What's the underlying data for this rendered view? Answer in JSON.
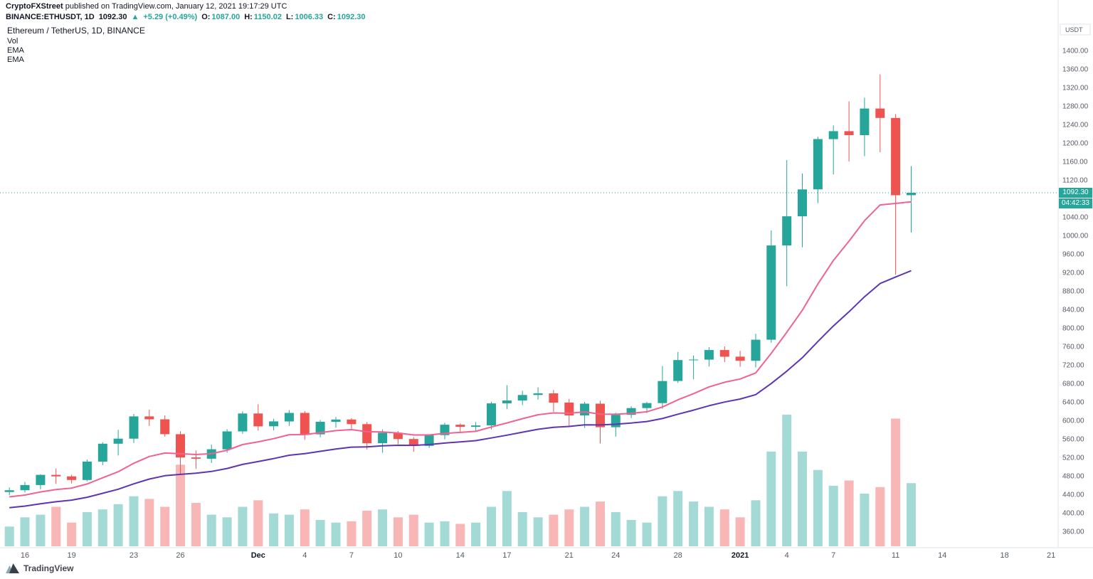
{
  "header": {
    "publisher": "CryptoFXStreet",
    "published_text": " published on TradingView.com, January 12, 2021 19:17:29 UTC",
    "symbol": "BINANCE:ETHUSDT, 1D",
    "last_price": "1092.30",
    "change_arrow": "▲",
    "change_text": "+5.29 (+0.49%)",
    "ohlc": [
      {
        "label": "O:",
        "value": "1087.00"
      },
      {
        "label": "H:",
        "value": "1150.02"
      },
      {
        "label": "L:",
        "value": "1006.33"
      },
      {
        "label": "C:",
        "value": "1092.30"
      }
    ]
  },
  "legend": {
    "title": "Ethereum / TetherUS, 1D, BINANCE",
    "indicators": [
      "Vol",
      "EMA",
      "EMA"
    ]
  },
  "price_axis": {
    "unit": "USDT",
    "min": 360,
    "max": 1400,
    "step": 40,
    "current_price_label": "1092.30",
    "countdown": "04:42:33"
  },
  "time_axis": {
    "labels": [
      {
        "text": "16",
        "index": 1,
        "strong": false
      },
      {
        "text": "19",
        "index": 4,
        "strong": false
      },
      {
        "text": "23",
        "index": 8,
        "strong": false
      },
      {
        "text": "26",
        "index": 11,
        "strong": false
      },
      {
        "text": "Dec",
        "index": 16,
        "strong": true
      },
      {
        "text": "4",
        "index": 19,
        "strong": false
      },
      {
        "text": "7",
        "index": 22,
        "strong": false
      },
      {
        "text": "10",
        "index": 25,
        "strong": false
      },
      {
        "text": "14",
        "index": 29,
        "strong": false
      },
      {
        "text": "17",
        "index": 32,
        "strong": false
      },
      {
        "text": "21",
        "index": 36,
        "strong": false
      },
      {
        "text": "24",
        "index": 39,
        "strong": false
      },
      {
        "text": "28",
        "index": 43,
        "strong": false
      },
      {
        "text": "2021",
        "index": 47,
        "strong": true
      },
      {
        "text": "4",
        "index": 50,
        "strong": false
      },
      {
        "text": "7",
        "index": 53,
        "strong": false
      },
      {
        "text": "11",
        "index": 57,
        "strong": false
      },
      {
        "text": "14",
        "index": 60,
        "strong": false
      },
      {
        "text": "18",
        "index": 64,
        "strong": false
      },
      {
        "text": "21",
        "index": 67,
        "strong": false
      }
    ]
  },
  "footer": {
    "logo_text": "TradingView"
  },
  "colors": {
    "up": "#26a69a",
    "down": "#ef5350",
    "vol_up": "rgba(38,166,154,0.42)",
    "vol_down": "rgba(239,83,80,0.42)",
    "ema_fast": "#f06292",
    "ema_slow": "#5e35b1",
    "accent": "#26a69a",
    "axis_text": "#555a64",
    "axis_line": "#e0e3eb"
  },
  "chart_data": {
    "type": "candlestick",
    "title": "Ethereum / TetherUS, 1D, BINANCE",
    "symbol": "ETHUSDT",
    "exchange": "BINANCE",
    "interval": "1D",
    "quote_unit": "USDT",
    "ylim": [
      340,
      1460
    ],
    "current_price": 1092.3,
    "countdown_to_close": "04:42:33",
    "ema_periods": [
      12,
      26
    ],
    "ema_seeds": [
      432,
      408
    ],
    "volume_unit": "relative",
    "ohlcv_columns": [
      "date",
      "open",
      "high",
      "low",
      "close",
      "volume"
    ],
    "ohlcv": [
      [
        "2020-11-15",
        445.0,
        455.0,
        438.0,
        448.9,
        15
      ],
      [
        "2020-11-16",
        448.9,
        466.9,
        444.0,
        460.1,
        22
      ],
      [
        "2020-11-17",
        460.1,
        483.6,
        451.0,
        482.1,
        24
      ],
      [
        "2020-11-18",
        482.1,
        495.9,
        462.5,
        478.9,
        30
      ],
      [
        "2020-11-19",
        478.9,
        482.5,
        463.5,
        471.1,
        18
      ],
      [
        "2020-11-20",
        471.1,
        515.4,
        468.3,
        510.9,
        26
      ],
      [
        "2020-11-21",
        510.9,
        552.8,
        503.0,
        549.6,
        28
      ],
      [
        "2020-11-22",
        549.6,
        579.5,
        524.0,
        560.5,
        32
      ],
      [
        "2020-11-23",
        560.5,
        613.8,
        551.2,
        608.6,
        38
      ],
      [
        "2020-11-24",
        608.6,
        623.5,
        588.0,
        602.3,
        36
      ],
      [
        "2020-11-25",
        602.3,
        611.0,
        565.0,
        570.2,
        30
      ],
      [
        "2020-11-26",
        570.2,
        576.5,
        481.5,
        519.8,
        62
      ],
      [
        "2020-11-27",
        519.8,
        535.0,
        495.0,
        517.1,
        33
      ],
      [
        "2020-11-28",
        517.1,
        547.5,
        508.0,
        537.5,
        24
      ],
      [
        "2020-11-29",
        537.5,
        580.9,
        530.1,
        576.2,
        22
      ],
      [
        "2020-11-30",
        576.2,
        619.5,
        571.0,
        615.0,
        30
      ],
      [
        "2020-12-01",
        615.0,
        635.0,
        578.0,
        587.2,
        35
      ],
      [
        "2020-12-02",
        587.2,
        603.5,
        578.5,
        597.8,
        25
      ],
      [
        "2020-12-03",
        597.8,
        622.5,
        588.0,
        616.2,
        24
      ],
      [
        "2020-12-04",
        616.2,
        620.0,
        558.0,
        569.8,
        28
      ],
      [
        "2020-12-05",
        569.8,
        601.0,
        563.5,
        596.9,
        20
      ],
      [
        "2020-12-06",
        596.9,
        607.5,
        584.5,
        601.9,
        18
      ],
      [
        "2020-12-07",
        601.9,
        605.0,
        582.0,
        591.9,
        19
      ],
      [
        "2020-12-08",
        591.9,
        596.5,
        537.0,
        550.6,
        27
      ],
      [
        "2020-12-09",
        550.6,
        580.5,
        530.0,
        573.2,
        28
      ],
      [
        "2020-12-10",
        573.2,
        577.0,
        548.5,
        559.7,
        22
      ],
      [
        "2020-12-11",
        559.7,
        563.5,
        532.0,
        544.9,
        24
      ],
      [
        "2020-12-12",
        544.9,
        570.0,
        540.5,
        568.2,
        18
      ],
      [
        "2020-12-13",
        568.2,
        595.0,
        559.0,
        590.6,
        19
      ],
      [
        "2020-12-14",
        590.6,
        593.5,
        573.5,
        586.0,
        17
      ],
      [
        "2020-12-15",
        586.0,
        596.5,
        577.0,
        589.1,
        18
      ],
      [
        "2020-12-16",
        589.1,
        640.5,
        580.5,
        636.7,
        30
      ],
      [
        "2020-12-17",
        636.7,
        676.2,
        624.5,
        643.0,
        42
      ],
      [
        "2020-12-18",
        643.0,
        664.0,
        633.0,
        655.0,
        26
      ],
      [
        "2020-12-19",
        655.0,
        671.5,
        645.0,
        658.5,
        22
      ],
      [
        "2020-12-20",
        658.5,
        665.5,
        618.5,
        638.4,
        24
      ],
      [
        "2020-12-21",
        638.4,
        646.5,
        588.0,
        610.5,
        28
      ],
      [
        "2020-12-22",
        610.5,
        640.0,
        583.5,
        636.1,
        30
      ],
      [
        "2020-12-23",
        636.1,
        642.5,
        550.0,
        585.2,
        34
      ],
      [
        "2020-12-24",
        585.2,
        616.5,
        565.0,
        612.0,
        26
      ],
      [
        "2020-12-25",
        612.0,
        630.5,
        605.0,
        626.6,
        20
      ],
      [
        "2020-12-26",
        626.6,
        640.0,
        615.5,
        637.4,
        18
      ],
      [
        "2020-12-27",
        637.4,
        717.5,
        625.0,
        685.1,
        38
      ],
      [
        "2020-12-28",
        685.1,
        748.0,
        681.0,
        730.4,
        42
      ],
      [
        "2020-12-29",
        730.4,
        740.5,
        689.0,
        731.5,
        34
      ],
      [
        "2020-12-30",
        731.5,
        758.5,
        716.5,
        752.2,
        30
      ],
      [
        "2020-12-31",
        752.2,
        760.0,
        726.0,
        737.8,
        28
      ],
      [
        "2021-01-01",
        737.8,
        750.5,
        716.0,
        728.9,
        22
      ],
      [
        "2021-01-02",
        728.9,
        787.5,
        714.5,
        774.5,
        35
      ],
      [
        "2021-01-03",
        774.5,
        1011.0,
        768.0,
        978.3,
        72
      ],
      [
        "2021-01-04",
        978.3,
        1162.9,
        890.0,
        1041.4,
        100
      ],
      [
        "2021-01-05",
        1041.4,
        1134.0,
        974.5,
        1099.6,
        72
      ],
      [
        "2021-01-06",
        1099.6,
        1213.5,
        1070.0,
        1208.4,
        58
      ],
      [
        "2021-01-07",
        1208.4,
        1238.0,
        1132.0,
        1225.6,
        46
      ],
      [
        "2021-01-08",
        1225.6,
        1290.0,
        1160.0,
        1217.0,
        50
      ],
      [
        "2021-01-09",
        1217.0,
        1298.0,
        1171.5,
        1274.5,
        40
      ],
      [
        "2021-01-10",
        1274.5,
        1348.3,
        1180.0,
        1254.2,
        45
      ],
      [
        "2021-01-11",
        1254.2,
        1262.5,
        915.0,
        1087.0,
        97
      ],
      [
        "2021-01-12",
        1087.0,
        1150.02,
        1006.33,
        1092.3,
        48
      ]
    ]
  }
}
